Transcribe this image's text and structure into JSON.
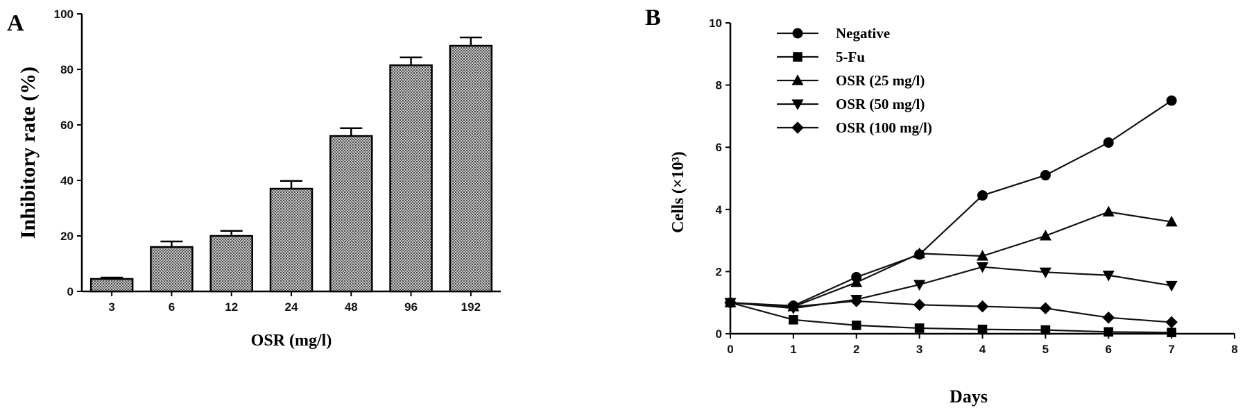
{
  "figure": {
    "panel_a_letter": "A",
    "panel_b_letter": "B"
  },
  "chart_data": [
    {
      "type": "bar",
      "panel": "A",
      "title": "",
      "xlabel": "OSR (mg/l)",
      "ylabel": "Inhibitory rate (%)",
      "categories": [
        "3",
        "6",
        "12",
        "24",
        "48",
        "96",
        "192"
      ],
      "values": [
        4.5,
        16,
        20,
        37,
        56,
        81.5,
        88.5
      ],
      "errors": [
        0.5,
        2,
        1.8,
        2.8,
        2.8,
        2.8,
        3
      ],
      "ylim": [
        0,
        100
      ],
      "yticks": [
        0,
        20,
        40,
        60,
        80,
        100
      ],
      "grid": false,
      "bar_fill": "#9a9a9a"
    },
    {
      "type": "line",
      "panel": "B",
      "title": "",
      "xlabel": "Days",
      "ylabel": "Cells (×10³)",
      "xlim": [
        0,
        8
      ],
      "ylim": [
        0,
        10
      ],
      "xticks": [
        0,
        1,
        2,
        3,
        4,
        5,
        6,
        7,
        8
      ],
      "yticks": [
        0,
        2,
        4,
        6,
        8,
        10
      ],
      "grid": false,
      "legend_position": "top-left",
      "x": [
        0,
        1,
        2,
        3,
        4,
        5,
        6,
        7
      ],
      "series": [
        {
          "name": "Negative",
          "marker": "circle",
          "values": [
            1.0,
            0.9,
            1.82,
            2.55,
            4.45,
            5.1,
            6.15,
            7.5
          ]
        },
        {
          "name": "5-Fu",
          "marker": "square",
          "values": [
            1.0,
            0.45,
            0.27,
            0.18,
            0.14,
            0.12,
            0.06,
            0.04
          ]
        },
        {
          "name": "OSR (25 mg/l)",
          "marker": "triangle-up",
          "values": [
            1.0,
            0.87,
            1.65,
            2.58,
            2.5,
            3.15,
            3.92,
            3.6
          ]
        },
        {
          "name": "OSR (50 mg/l)",
          "marker": "triangle-down",
          "values": [
            1.0,
            0.82,
            1.1,
            1.58,
            2.15,
            1.98,
            1.88,
            1.55
          ]
        },
        {
          "name": "OSR (100 mg/l)",
          "marker": "diamond",
          "values": [
            1.0,
            0.87,
            1.05,
            0.93,
            0.88,
            0.82,
            0.52,
            0.37
          ]
        }
      ]
    }
  ]
}
